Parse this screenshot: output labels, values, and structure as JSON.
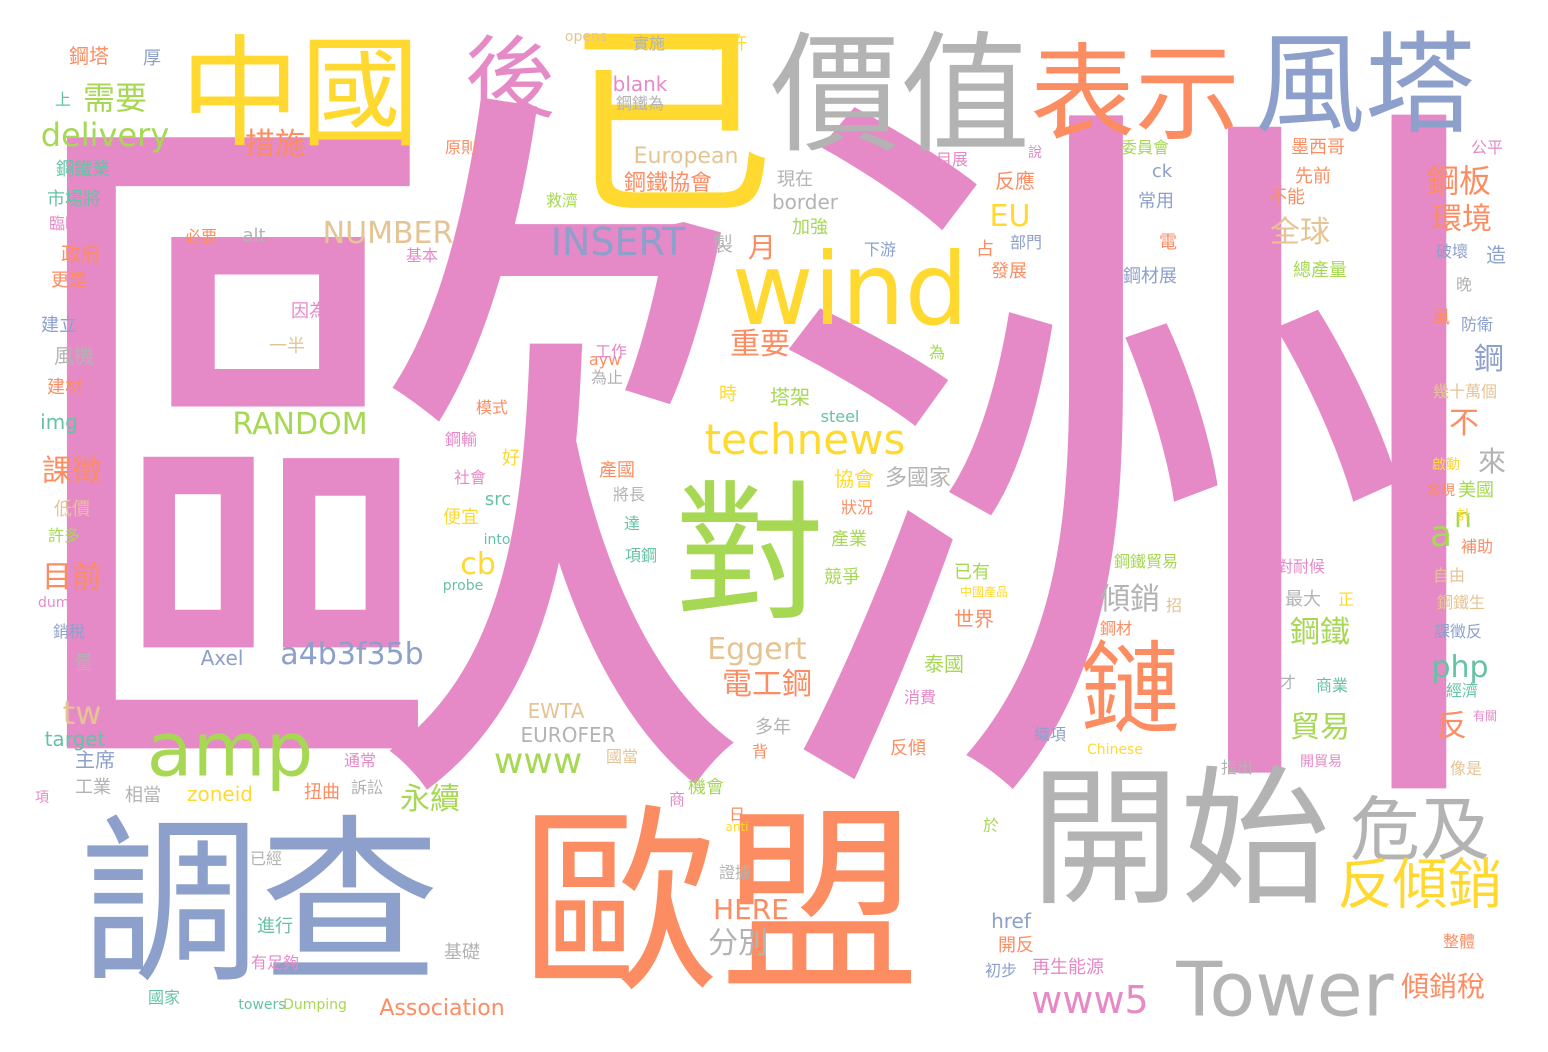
{
  "palette": {
    "pink": "#e58ac7",
    "orange": "#fc8d62",
    "blue": "#8da0cb",
    "green": "#a6d854",
    "yellow": "#ffd92f",
    "gray": "#b3b3b3",
    "tan": "#e5c494",
    "teal": "#66c2a5"
  },
  "words": [
    {
      "text": "歐洲",
      "color": "pink"
    },
    {
      "text": "已",
      "color": "yellow"
    },
    {
      "text": "中國",
      "color": "yellow"
    },
    {
      "text": "後",
      "color": "pink"
    },
    {
      "text": "價值",
      "color": "gray"
    },
    {
      "text": "表示",
      "color": "orange"
    },
    {
      "text": "風塔",
      "color": "blue"
    },
    {
      "text": "調查",
      "color": "blue"
    },
    {
      "text": "歐盟",
      "color": "orange"
    },
    {
      "text": "開始",
      "color": "gray"
    },
    {
      "text": "對",
      "color": "green"
    },
    {
      "text": "wind",
      "color": "yellow"
    },
    {
      "text": "amp",
      "color": "green"
    },
    {
      "text": "鏈",
      "color": "orange"
    },
    {
      "text": "Tower",
      "color": "gray"
    },
    {
      "text": "危及",
      "color": "gray"
    },
    {
      "text": "反傾銷",
      "color": "yellow"
    },
    {
      "text": "technews",
      "color": "yellow"
    },
    {
      "text": "delivery",
      "color": "green"
    },
    {
      "text": "需要",
      "color": "green"
    },
    {
      "text": "措施",
      "color": "orange"
    },
    {
      "text": "INSERT",
      "color": "blue"
    },
    {
      "text": "NUMBER",
      "color": "tan"
    },
    {
      "text": "RANDOM",
      "color": "green"
    },
    {
      "text": "a4b3f35b",
      "color": "blue"
    },
    {
      "text": "Eggert",
      "color": "tan"
    },
    {
      "text": "電工鋼",
      "color": "orange"
    },
    {
      "text": "www",
      "color": "green"
    },
    {
      "text": "www5",
      "color": "pink"
    },
    {
      "text": "cb",
      "color": "yellow"
    },
    {
      "text": "tw",
      "color": "tan"
    },
    {
      "text": "a",
      "color": "green"
    },
    {
      "text": "n",
      "color": "green"
    },
    {
      "text": "php",
      "color": "teal"
    },
    {
      "text": "鋼板",
      "color": "orange"
    },
    {
      "text": "環境",
      "color": "orange"
    },
    {
      "text": "全球",
      "color": "tan"
    },
    {
      "text": "EU",
      "color": "yellow"
    },
    {
      "text": "月",
      "color": "orange"
    },
    {
      "text": "重要",
      "color": "orange"
    },
    {
      "text": "鋼",
      "color": "blue"
    },
    {
      "text": "課徵",
      "color": "orange"
    },
    {
      "text": "目前",
      "color": "orange"
    },
    {
      "text": "永續",
      "color": "green"
    },
    {
      "text": "分別",
      "color": "gray"
    },
    {
      "text": "HERE",
      "color": "orange"
    },
    {
      "text": "傾銷",
      "color": "gray"
    },
    {
      "text": "鋼鐵",
      "color": "green"
    },
    {
      "text": "貿易",
      "color": "green"
    },
    {
      "text": "反",
      "color": "orange"
    },
    {
      "text": "傾銷稅",
      "color": "orange"
    },
    {
      "text": "不",
      "color": "orange"
    },
    {
      "text": "來",
      "color": "gray"
    },
    {
      "text": "多國家",
      "color": "gray"
    },
    {
      "text": "協會",
      "color": "yellow"
    },
    {
      "text": "European",
      "color": "tan"
    },
    {
      "text": "鋼鐵協會",
      "color": "orange"
    },
    {
      "text": "blank",
      "color": "pink"
    },
    {
      "text": "鋼鐵為",
      "color": "gray"
    },
    {
      "text": "border",
      "color": "gray"
    },
    {
      "text": "現在",
      "color": "gray"
    },
    {
      "text": "加強",
      "color": "green"
    },
    {
      "text": "製",
      "color": "gray"
    },
    {
      "text": "alt",
      "color": "gray"
    },
    {
      "text": "必要",
      "color": "orange"
    },
    {
      "text": "基本",
      "color": "pink"
    },
    {
      "text": "因為",
      "color": "pink"
    },
    {
      "text": "一半",
      "color": "tan"
    },
    {
      "text": "ayw",
      "color": "orange"
    },
    {
      "text": "工作",
      "color": "pink"
    },
    {
      "text": "為止",
      "color": "gray"
    },
    {
      "text": "塔架",
      "color": "green"
    },
    {
      "text": "時",
      "color": "yellow"
    },
    {
      "text": "steel",
      "color": "teal"
    },
    {
      "text": "模式",
      "color": "orange"
    },
    {
      "text": "鋼輸",
      "color": "pink"
    },
    {
      "text": "好",
      "color": "yellow"
    },
    {
      "text": "社會",
      "color": "pink"
    },
    {
      "text": "src",
      "color": "teal"
    },
    {
      "text": "into",
      "color": "teal"
    },
    {
      "text": "便宜",
      "color": "yellow"
    },
    {
      "text": "產國",
      "color": "orange"
    },
    {
      "text": "將長",
      "color": "gray"
    },
    {
      "text": "probe",
      "color": "teal"
    },
    {
      "text": "Axel",
      "color": "blue"
    },
    {
      "text": "EWTA",
      "color": "tan"
    },
    {
      "text": "EUROFER",
      "color": "gray"
    },
    {
      "text": "Association",
      "color": "orange"
    },
    {
      "text": "zoneid",
      "color": "yellow"
    },
    {
      "text": "扭曲",
      "color": "orange"
    },
    {
      "text": "訴訟",
      "color": "gray"
    },
    {
      "text": "通常",
      "color": "pink"
    },
    {
      "text": "相當",
      "color": "gray"
    },
    {
      "text": "工業",
      "color": "gray"
    },
    {
      "text": "主席",
      "color": "blue"
    },
    {
      "text": "target",
      "color": "teal"
    },
    {
      "text": "img",
      "color": "teal"
    },
    {
      "text": "風機",
      "color": "gray"
    },
    {
      "text": "建材",
      "color": "orange"
    },
    {
      "text": "建立",
      "color": "blue"
    },
    {
      "text": "更是",
      "color": "orange"
    },
    {
      "text": "政府",
      "color": "orange"
    },
    {
      "text": "臨時性",
      "color": "pink"
    },
    {
      "text": "市場將",
      "color": "teal"
    },
    {
      "text": "鋼鐵業",
      "color": "teal"
    },
    {
      "text": "上",
      "color": "teal"
    },
    {
      "text": "鋼塔",
      "color": "orange"
    },
    {
      "text": "厚",
      "color": "blue"
    },
    {
      "text": "原則",
      "color": "orange"
    },
    {
      "text": "opens",
      "color": "tan"
    },
    {
      "text": "實施",
      "color": "gray"
    },
    {
      "text": "允許",
      "color": "yellow"
    },
    {
      "text": "目展",
      "color": "pink"
    },
    {
      "text": "說",
      "color": "pink"
    },
    {
      "text": "反應",
      "color": "orange"
    },
    {
      "text": "ck",
      "color": "blue"
    },
    {
      "text": "常用",
      "color": "blue"
    },
    {
      "text": "下游",
      "color": "blue"
    },
    {
      "text": "部門",
      "color": "blue"
    },
    {
      "text": "占",
      "color": "orange"
    },
    {
      "text": "電",
      "color": "orange"
    },
    {
      "text": "發展",
      "color": "orange"
    },
    {
      "text": "鋼材展",
      "color": "blue"
    },
    {
      "text": "委員會",
      "color": "green"
    },
    {
      "text": "墨西哥",
      "color": "orange"
    },
    {
      "text": "先前",
      "color": "orange"
    },
    {
      "text": "不能",
      "color": "orange"
    },
    {
      "text": "公平",
      "color": "pink"
    },
    {
      "text": "總產量",
      "color": "green"
    },
    {
      "text": "破壞",
      "color": "blue"
    },
    {
      "text": "造",
      "color": "blue"
    },
    {
      "text": "晚",
      "color": "gray"
    },
    {
      "text": "防衛",
      "color": "blue"
    },
    {
      "text": "風",
      "color": "orange"
    },
    {
      "text": "幾十萬個",
      "color": "tan"
    },
    {
      "text": "啟動",
      "color": "yellow"
    },
    {
      "text": "美國",
      "color": "green"
    },
    {
      "text": "計",
      "color": "yellow"
    },
    {
      "text": "補助",
      "color": "orange"
    },
    {
      "text": "發現",
      "color": "orange"
    },
    {
      "text": "自由",
      "color": "tan"
    },
    {
      "text": "鋼鐵生",
      "color": "tan"
    },
    {
      "text": "課徵反",
      "color": "blue"
    },
    {
      "text": "經濟",
      "color": "teal"
    },
    {
      "text": "有關",
      "color": "pink"
    },
    {
      "text": "像是",
      "color": "tan"
    },
    {
      "text": "商業",
      "color": "teal"
    },
    {
      "text": "才",
      "color": "gray"
    },
    {
      "text": "最大",
      "color": "gray"
    },
    {
      "text": "正",
      "color": "yellow"
    },
    {
      "text": "招",
      "color": "tan"
    },
    {
      "text": "鋼材",
      "color": "orange"
    },
    {
      "text": "對耐候",
      "color": "pink"
    },
    {
      "text": "鋼鐵貿易",
      "color": "green"
    },
    {
      "text": "已有",
      "color": "green"
    },
    {
      "text": "中國產品",
      "color": "yellow"
    },
    {
      "text": "世界",
      "color": "orange"
    },
    {
      "text": "泰國",
      "color": "green"
    },
    {
      "text": "消費",
      "color": "pink"
    },
    {
      "text": "織項",
      "color": "blue"
    },
    {
      "text": "Chinese",
      "color": "yellow"
    },
    {
      "text": "開貿易",
      "color": "pink"
    },
    {
      "text": "指出",
      "color": "gray"
    },
    {
      "text": "整體",
      "color": "orange"
    },
    {
      "text": "再生能源",
      "color": "pink"
    },
    {
      "text": "初步",
      "color": "blue"
    },
    {
      "text": "開反",
      "color": "orange"
    },
    {
      "text": "href",
      "color": "blue"
    },
    {
      "text": "於",
      "color": "green"
    },
    {
      "text": "反傾",
      "color": "orange"
    },
    {
      "text": "背",
      "color": "orange"
    },
    {
      "text": "多年",
      "color": "gray"
    },
    {
      "text": "機會",
      "color": "green"
    },
    {
      "text": "商",
      "color": "pink"
    },
    {
      "text": "日",
      "color": "orange"
    },
    {
      "text": "anti",
      "color": "yellow"
    },
    {
      "text": "證據",
      "color": "gray"
    },
    {
      "text": "towers",
      "color": "teal"
    },
    {
      "text": "Dumping",
      "color": "green"
    },
    {
      "text": "基礎",
      "color": "gray"
    },
    {
      "text": "進行",
      "color": "teal"
    },
    {
      "text": "已經",
      "color": "gray"
    },
    {
      "text": "有足夠",
      "color": "pink"
    },
    {
      "text": "國家",
      "color": "teal"
    },
    {
      "text": "項",
      "color": "pink"
    },
    {
      "text": "量",
      "color": "gray"
    },
    {
      "text": "銷稅",
      "color": "blue"
    },
    {
      "text": "dumping",
      "color": "pink"
    },
    {
      "text": "許多",
      "color": "green"
    },
    {
      "text": "低價",
      "color": "tan"
    },
    {
      "text": "競爭",
      "color": "green"
    },
    {
      "text": "產業",
      "color": "green"
    },
    {
      "text": "狀況",
      "color": "orange"
    },
    {
      "text": "項鋼",
      "color": "teal"
    },
    {
      "text": "達",
      "color": "teal"
    },
    {
      "text": "救濟",
      "color": "green"
    },
    {
      "text": "為",
      "color": "green"
    },
    {
      "text": "國當",
      "color": "tan"
    }
  ]
}
